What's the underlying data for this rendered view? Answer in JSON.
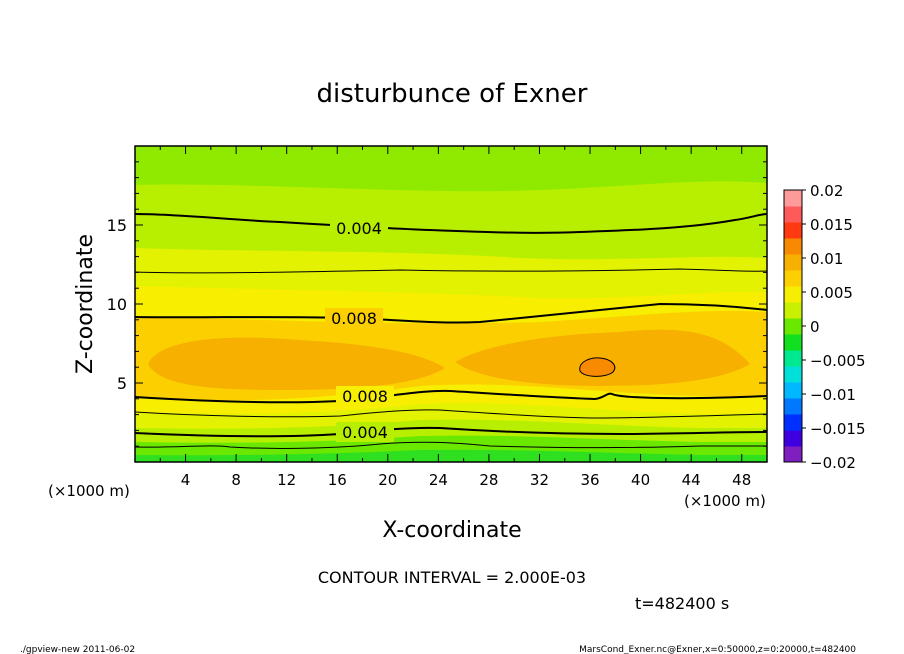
{
  "chart_data": {
    "type": "contour",
    "title": "disturbunce of Exner",
    "xlabel": "X-coordinate",
    "ylabel": "Z-coordinate",
    "x_unit_left": "(×1000 m)",
    "x_unit_right": "(×1000 m)",
    "xlim": [
      0,
      50
    ],
    "ylim": [
      0,
      20
    ],
    "x_ticks": [
      4,
      8,
      12,
      16,
      20,
      24,
      28,
      32,
      36,
      40,
      44,
      48
    ],
    "y_ticks": [
      5,
      10,
      15
    ],
    "contour_interval_text": "CONTOUR INTERVAL = 2.000E-03",
    "time_text": "t=482400 s",
    "colorbar": {
      "levels": [
        -0.02,
        -0.015,
        -0.01,
        -0.005,
        0,
        0.005,
        0.01,
        0.015,
        0.02
      ],
      "labels": [
        "0.02",
        "0.015",
        "0.01",
        "0.005",
        "0",
        "−0.005",
        "−0.01",
        "−0.015",
        "−0.02"
      ],
      "colors_bottom_to_top": [
        "#7f1fbf",
        "#3f00e0",
        "#0030ff",
        "#0078ff",
        "#00b8ff",
        "#00e0d8",
        "#00e890",
        "#10e020",
        "#6ae800",
        "#c8f000",
        "#f5ee00",
        "#fcd000",
        "#f7b000",
        "#f78a00",
        "#ff3a10",
        "#ff5a5a",
        "#ff9a9a"
      ]
    },
    "contours": [
      {
        "label": "0.004",
        "z_left": 15.5,
        "z_mid": 14.6,
        "z_right": 15.5
      },
      {
        "label": "",
        "z_left": 12.0,
        "z_mid": 11.9,
        "z_right": 12.0
      },
      {
        "label": "0.008",
        "z_left": 9.2,
        "z_mid": 8.8,
        "z_right": 9.5
      },
      {
        "label": "0.008",
        "z_left": 4.1,
        "z_mid": 4.6,
        "z_right": 4.0
      },
      {
        "label": "",
        "z_left": 3.0,
        "z_mid": 3.3,
        "z_right": 3.0
      },
      {
        "label": "0.004",
        "z_left": 1.8,
        "z_mid": 2.2,
        "z_right": 1.8
      },
      {
        "label": "",
        "z_left": 0.8,
        "z_mid": 1.2,
        "z_right": 0.8
      }
    ],
    "field_regions": [
      {
        "band": "z 16-20",
        "value_range": "0.002-0.004"
      },
      {
        "band": "z 13-16",
        "value_range": "0.004-0.006"
      },
      {
        "band": "z 9-13",
        "value_range": "0.006-0.008"
      },
      {
        "band": "z 4-9",
        "value_range": "0.008-0.010"
      },
      {
        "core": "x≈5-20, z≈5-8 and x≈26-47, z≈5-8",
        "value_range": "0.010-0.012"
      },
      {
        "cell": "x≈37, z≈6",
        "value_range": ">0.012"
      }
    ]
  },
  "footer": {
    "left": "./gpview-new   2011-06-02",
    "right": "MarsCond_Exner.nc@Exner,x=0:50000,z=0:20000,t=482400"
  }
}
